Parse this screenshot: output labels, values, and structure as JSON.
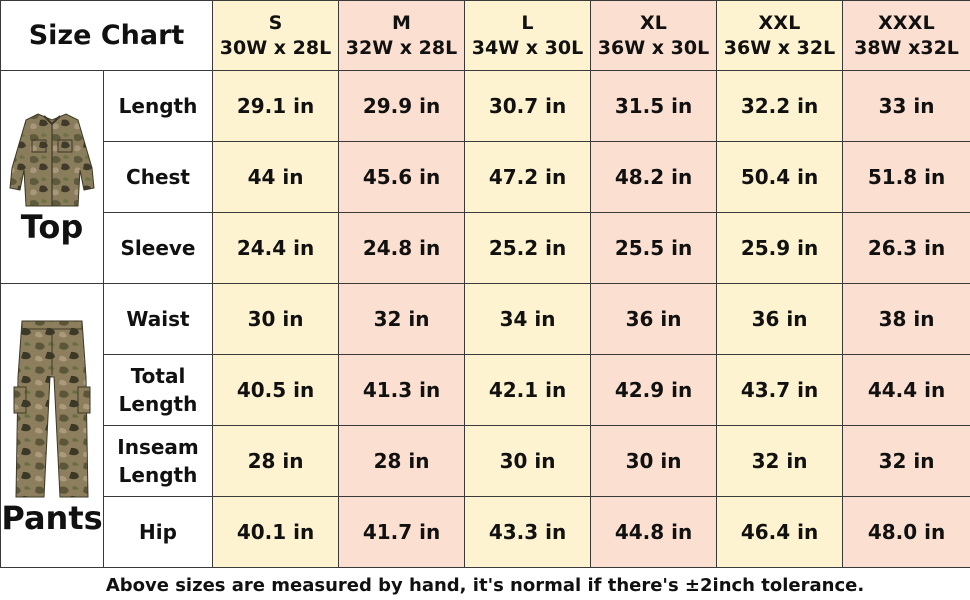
{
  "title": "Size Chart",
  "sizes": [
    {
      "size": "S",
      "fit": "30W x 28L"
    },
    {
      "size": "M",
      "fit": "32W x 28L"
    },
    {
      "size": "L",
      "fit": "34W x 30L"
    },
    {
      "size": "XL",
      "fit": "36W x 30L"
    },
    {
      "size": "XXL",
      "fit": "36W x 32L"
    },
    {
      "size": "XXXL",
      "fit": "38W x32L"
    }
  ],
  "column_colors": [
    "#fdf3d0",
    "#fbe0d1",
    "#fdf3d0",
    "#fbe0d1",
    "#fdf3d0",
    "#fbe0d1"
  ],
  "sections": [
    {
      "name": "Top",
      "icon": "camo-jacket-icon",
      "rows": [
        {
          "label": "Length",
          "values": [
            "29.1 in",
            "29.9 in",
            "30.7 in",
            "31.5 in",
            "32.2 in",
            "33 in"
          ]
        },
        {
          "label": "Chest",
          "values": [
            "44 in",
            "45.6 in",
            "47.2 in",
            "48.2 in",
            "50.4 in",
            "51.8 in"
          ]
        },
        {
          "label": "Sleeve",
          "values": [
            "24.4 in",
            "24.8 in",
            "25.2 in",
            "25.5 in",
            "25.9 in",
            "26.3 in"
          ]
        }
      ]
    },
    {
      "name": "Pants",
      "icon": "camo-pants-icon",
      "rows": [
        {
          "label": "Waist",
          "values": [
            "30 in",
            "32 in",
            "34 in",
            "36 in",
            "36 in",
            "38 in"
          ]
        },
        {
          "label_lines": [
            "Total",
            "Length"
          ],
          "values": [
            "40.5 in",
            "41.3 in",
            "42.1 in",
            "42.9 in",
            "43.7 in",
            "44.4 in"
          ]
        },
        {
          "label_lines": [
            "Inseam",
            "Length"
          ],
          "values": [
            "28 in",
            "28 in",
            "30 in",
            "30 in",
            "32 in",
            "32 in"
          ]
        },
        {
          "label": "Hip",
          "values": [
            "40.1 in",
            "41.7 in",
            "43.3 in",
            "44.8 in",
            "46.4 in",
            "48.0 in"
          ]
        }
      ]
    }
  ],
  "footer": "Above sizes are measured by hand, it's normal if there's ±2inch tolerance."
}
